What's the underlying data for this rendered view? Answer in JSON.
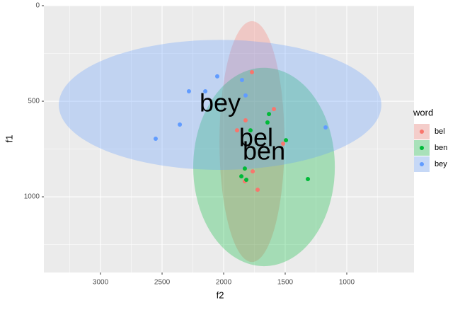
{
  "chart_data": {
    "type": "scatter",
    "x_label": "f2",
    "y_label": "f1",
    "xlim": [
      454,
      3460
    ],
    "ylim": [
      0,
      1396
    ],
    "x_reverse": true,
    "y_reverse": true,
    "xticks": [
      1000,
      1500,
      2000,
      2500,
      3000
    ],
    "yticks": [
      0,
      500,
      1000
    ],
    "grid": true,
    "legend_title": "word",
    "legend_position": "right",
    "series": [
      {
        "name": "bel",
        "color": "#F8766D",
        "x": [
          1770,
          1592,
          1822,
          1891,
          1517,
          1764,
          1828,
          1724
        ],
        "y": [
          348,
          541,
          600,
          652,
          722,
          867,
          919,
          963
        ],
        "ellipse": {
          "cx": 1770,
          "cy": 711,
          "rx": 264,
          "ry": 630
        },
        "label_pos": {
          "x": 1736,
          "y": 700
        }
      },
      {
        "name": "ben",
        "color": "#00BA38",
        "x": [
          1632,
          1644,
          1782,
          1494,
          1828,
          1856,
          1816,
          1316
        ],
        "y": [
          567,
          611,
          652,
          704,
          852,
          893,
          911,
          907
        ],
        "ellipse": {
          "cx": 1672,
          "cy": 844,
          "rx": 575,
          "ry": 519
        },
        "label_pos": {
          "x": 1672,
          "y": 770
        }
      },
      {
        "name": "bey",
        "color": "#619CFF",
        "x": [
          2052,
          1851,
          2149,
          2282,
          1822,
          2356,
          2552,
          1172
        ],
        "y": [
          370,
          389,
          448,
          448,
          470,
          622,
          696,
          637
        ],
        "ellipse": {
          "cx": 2029,
          "cy": 519,
          "rx": 1310,
          "ry": 340
        },
        "label_pos": {
          "x": 2029,
          "y": 519
        }
      }
    ]
  }
}
